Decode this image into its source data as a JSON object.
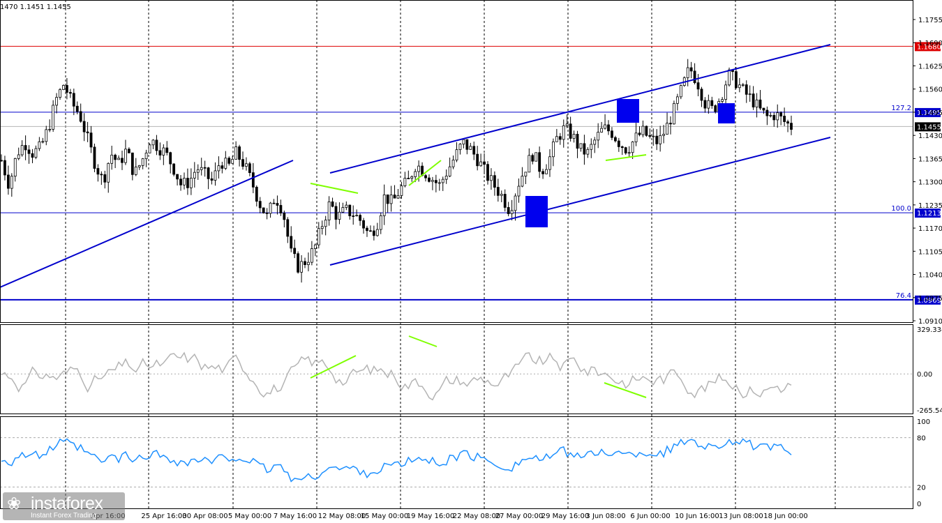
{
  "window": {
    "ohlc_text": "1470 1.1451 1.1455"
  },
  "colors": {
    "candle": "#000000",
    "trend": "#0000cc",
    "fib": "#0000cc",
    "resistance": "#dd0000",
    "divergence": "#7fff00",
    "cci": "#b4b4b4",
    "rsi": "#1e90ff",
    "grid": "#000000",
    "current_price": "#b4b4b4"
  },
  "time_axis": {
    "labels": [
      "25 Apr 16:00",
      "30 Apr 08:00",
      "5 May 00:00",
      "7 May 16:00",
      "12 May 08:00",
      "15 May 00:00",
      "19 May 16:00",
      "22 May 08:00",
      "27 May 00:00",
      "29 May 16:00",
      "3 Jun 08:00",
      "6 Jun 00:00",
      "10 Jun 16:00",
      "13 Jun 08:00",
      "18 Jun 00:00"
    ],
    "partial_label": "Apr 16:00"
  },
  "chart_data": [
    {
      "type": "candlestick",
      "symbol_ohlc_text": "1470 1.1451 1.1455",
      "ylim": [
        1.091,
        1.1755
      ],
      "y_ticks": [
        "1.1755",
        "1.1690",
        "1.1625",
        "1.1560",
        "1.1495",
        "1.1430",
        "1.1365",
        "1.1300",
        "1.1235",
        "1.1170",
        "1.1105",
        "1.1040",
        "1.0975",
        "1.0910"
      ],
      "close_path": [
        1.136,
        1.129,
        1.138,
        1.141,
        1.138,
        1.1395,
        1.145,
        1.153,
        1.1575,
        1.152,
        1.149,
        1.142,
        1.135,
        1.13,
        1.138,
        1.135,
        1.139,
        1.132,
        1.136,
        1.142,
        1.14,
        1.138,
        1.134,
        1.129,
        1.13,
        1.134,
        1.132,
        1.13,
        1.136,
        1.134,
        1.138,
        1.135,
        1.13,
        1.124,
        1.12,
        1.126,
        1.122,
        1.11,
        1.106,
        1.108,
        1.111,
        1.118,
        1.124,
        1.12,
        1.122,
        1.121,
        1.119,
        1.115,
        1.118,
        1.126,
        1.124,
        1.128,
        1.13,
        1.135,
        1.133,
        1.131,
        1.129,
        1.133,
        1.137,
        1.141,
        1.139,
        1.136,
        1.132,
        1.129,
        1.126,
        1.122,
        1.129,
        1.134,
        1.138,
        1.133,
        1.136,
        1.142,
        1.145,
        1.143,
        1.139,
        1.138,
        1.142,
        1.145,
        1.144,
        1.141,
        1.139,
        1.142,
        1.144,
        1.142,
        1.141,
        1.145,
        1.15,
        1.156,
        1.162,
        1.158,
        1.152,
        1.15,
        1.154,
        1.16,
        1.158,
        1.155,
        1.153,
        1.15,
        1.148,
        1.149,
        1.147,
        1.1455
      ],
      "resistance": {
        "price": 1.168,
        "label": "1.1680"
      },
      "fibonacci": [
        {
          "level": "127.2",
          "price": 1.1495,
          "label": "1.1495"
        },
        {
          "level": "100.0",
          "price": 1.1213,
          "label": "1.1213"
        },
        {
          "level": "76.4",
          "price": 1.0969,
          "label": "1.0969"
        }
      ],
      "current_price": {
        "price": 1.1455,
        "label": "1.1455"
      }
    },
    {
      "type": "line",
      "indicator": "CCI",
      "scale_labels": [
        "329.3341",
        "0.00",
        "-265.544"
      ],
      "ylim": [
        -265.544,
        329.3341
      ]
    },
    {
      "type": "line",
      "indicator": "RSI",
      "scale_labels": [
        "100",
        "80",
        "20",
        "0"
      ],
      "ylim": [
        0,
        100
      ]
    }
  ],
  "watermark": {
    "brand": "instaforex",
    "tagline": "Instant Forex Trading"
  }
}
